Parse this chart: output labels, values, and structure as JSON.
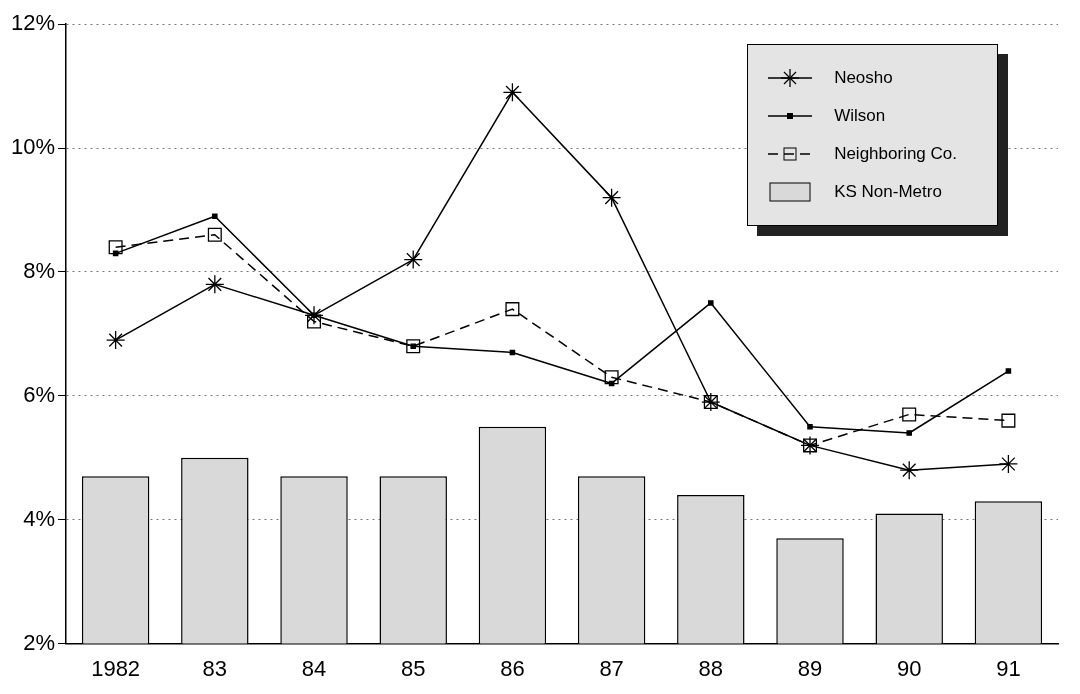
{
  "chart_data": {
    "type": "line",
    "categories": [
      "1982",
      "83",
      "84",
      "85",
      "86",
      "87",
      "88",
      "89",
      "90",
      "91"
    ],
    "series": [
      {
        "name": "Neosho",
        "color": "#000000",
        "marker": "cross",
        "line_style": "solid",
        "values": [
          6.9,
          7.8,
          7.3,
          8.2,
          10.9,
          9.2,
          5.9,
          5.2,
          4.8,
          4.9
        ]
      },
      {
        "name": "Wilson",
        "color": "#000000",
        "marker": "square",
        "line_style": "solid",
        "values": [
          8.3,
          8.9,
          7.3,
          6.8,
          6.7,
          6.2,
          7.5,
          5.5,
          5.4,
          6.4
        ]
      },
      {
        "name": "Neighboring Co.",
        "color": "#000000",
        "marker": "square",
        "line_style": "dashed",
        "values": [
          8.4,
          8.6,
          7.2,
          6.8,
          7.4,
          6.3,
          5.9,
          5.2,
          5.7,
          5.6
        ]
      },
      {
        "name": "KS Non-Metro",
        "type": "bar",
        "color": "#d9d9d9",
        "values": [
          4.7,
          5.0,
          4.7,
          4.7,
          5.5,
          4.7,
          4.4,
          3.7,
          4.1,
          4.3
        ]
      }
    ],
    "ylim": [
      2,
      12
    ],
    "yticks": [
      {
        "value": 2,
        "label": "2%"
      },
      {
        "value": 4,
        "label": "4%"
      },
      {
        "value": 6,
        "label": "6%"
      },
      {
        "value": 8,
        "label": "8%"
      },
      {
        "value": 10,
        "label": "10%"
      },
      {
        "value": 12,
        "label": "12%"
      }
    ],
    "grid": "y",
    "legend": "top right"
  }
}
